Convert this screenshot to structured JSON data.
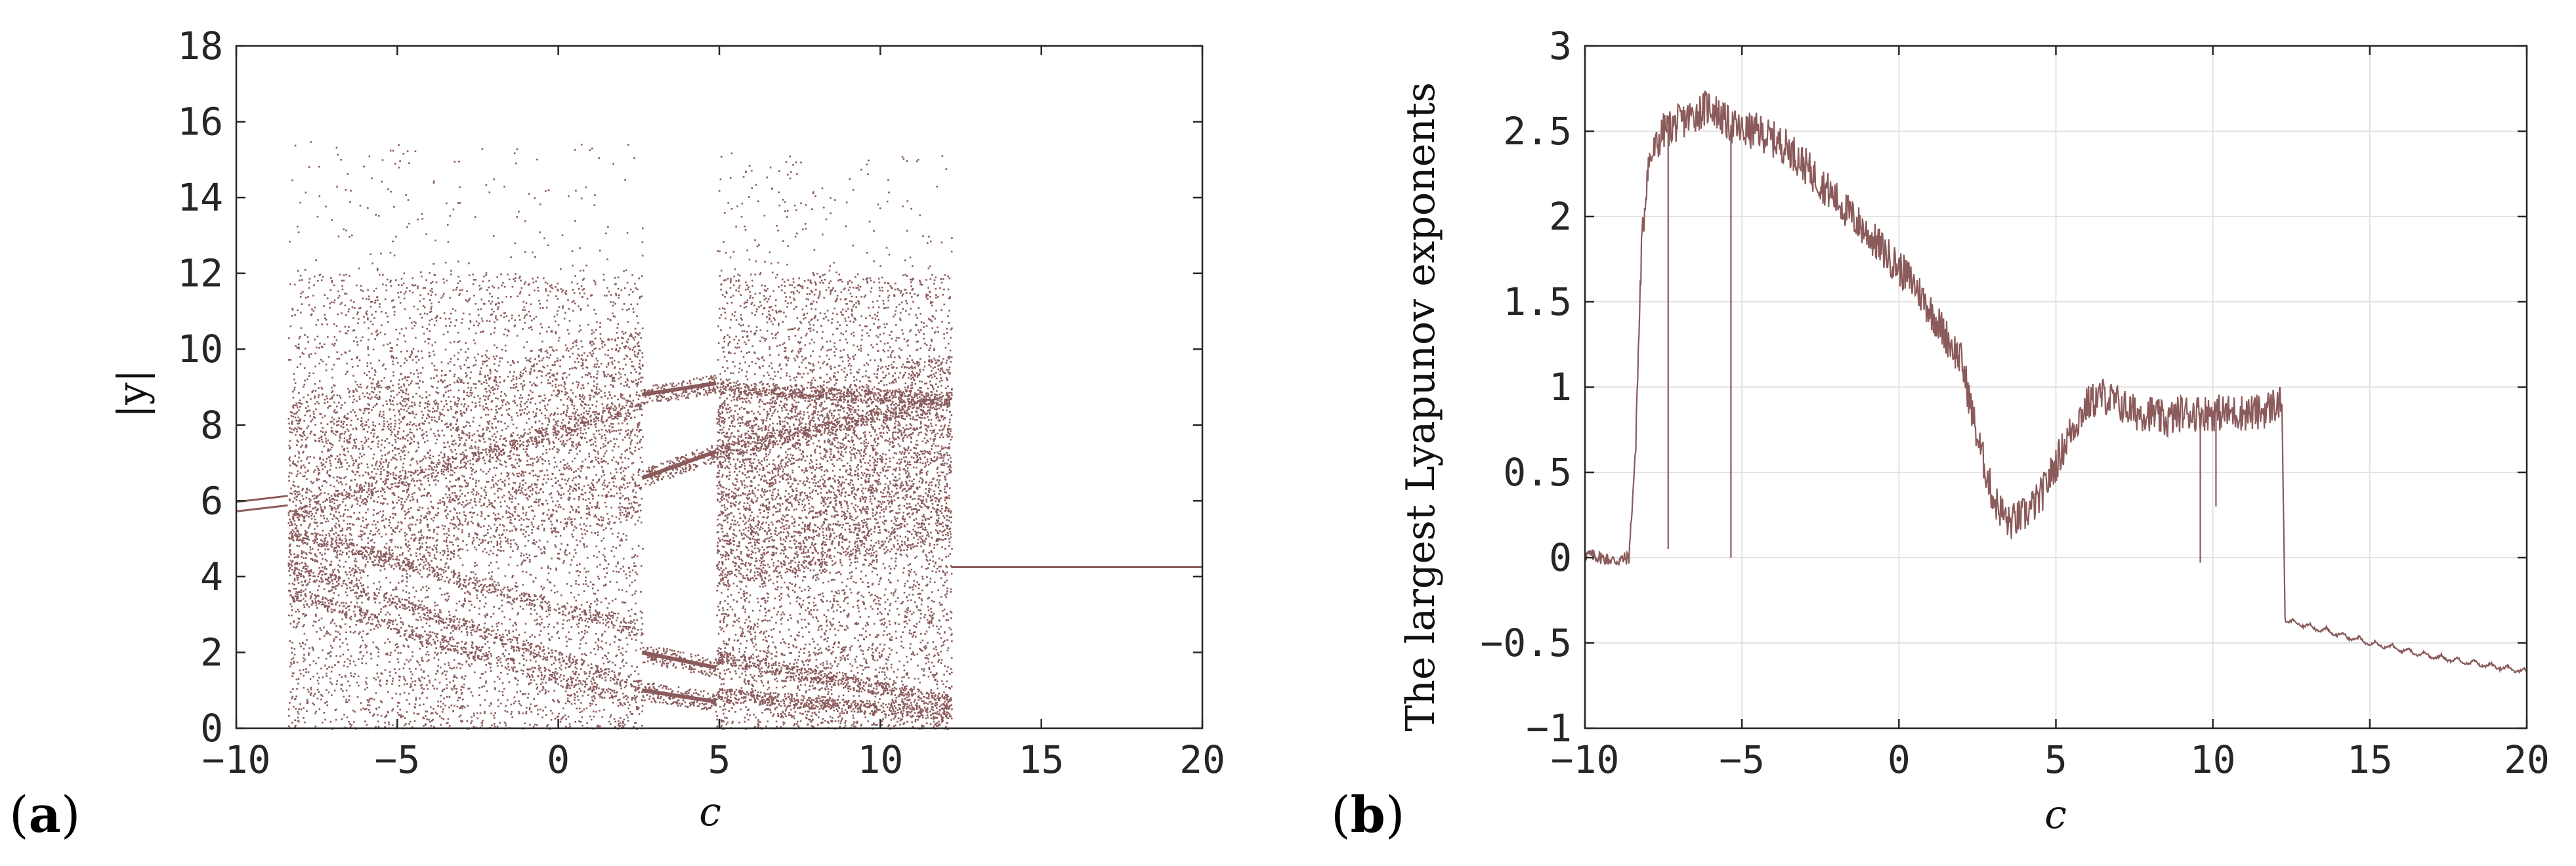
{
  "chart_data": [
    {
      "type": "scatter",
      "panel_label": {
        "open": "(",
        "letter": "a",
        "close": ")"
      },
      "title": "",
      "xlabel": "c",
      "ylabel": "|y|",
      "xlim": [
        -10,
        20
      ],
      "ylim": [
        0,
        18
      ],
      "xticks": [
        -10,
        -5,
        0,
        5,
        10,
        15,
        20
      ],
      "xtick_labels": [
        "−10",
        "−5",
        "0",
        "5",
        "10",
        "15",
        "20"
      ],
      "yticks": [
        0,
        2,
        4,
        6,
        8,
        10,
        12,
        14,
        16,
        18
      ],
      "ytick_labels": [
        "0",
        "2",
        "4",
        "6",
        "8",
        "10",
        "12",
        "14",
        "16",
        "18"
      ],
      "grid": false,
      "color": "#8b5a5a",
      "regions": [
        {
          "c_range": [
            -10,
            -8.4
          ],
          "behavior": "period-2 branch",
          "y_values": [
            5.8,
            6.05
          ]
        },
        {
          "c_range": [
            -8.4,
            2.6
          ],
          "behavior": "chaotic band",
          "y_range": [
            0,
            15.5
          ]
        },
        {
          "c_range": [
            2.6,
            4.9
          ],
          "behavior": "periodic window",
          "branches": [
            [
              8.8,
              9.1
            ],
            [
              6.6,
              7.3
            ],
            [
              2.0,
              1.6
            ],
            [
              1.0,
              0.7
            ]
          ]
        },
        {
          "c_range": [
            4.9,
            12.2
          ],
          "behavior": "chaotic band",
          "y_range": [
            0,
            15.2
          ]
        },
        {
          "c_range": [
            12.2,
            20
          ],
          "behavior": "fixed point",
          "y_values": [
            4.25
          ]
        }
      ]
    },
    {
      "type": "line",
      "panel_label": {
        "open": "(",
        "letter": "b",
        "close": ")"
      },
      "title": "",
      "xlabel": "c",
      "ylabel": "The largest Lyapunov exponents",
      "xlim": [
        -10,
        20
      ],
      "ylim": [
        -1,
        3
      ],
      "xticks": [
        -10,
        -5,
        0,
        5,
        10,
        15,
        20
      ],
      "xtick_labels": [
        "−10",
        "−5",
        "0",
        "5",
        "10",
        "15",
        "20"
      ],
      "yticks": [
        -1,
        -0.5,
        0,
        0.5,
        1,
        1.5,
        2,
        2.5,
        3
      ],
      "ytick_labels": [
        "−1",
        "−0.5",
        "0",
        "0.5",
        "1",
        "1.5",
        "2",
        "2.5",
        "3"
      ],
      "grid": true,
      "color": "#8b5a5a",
      "series": [
        {
          "x": [
            -10,
            -9.5,
            -9,
            -8.6,
            -8.4,
            -8.2,
            -8.0,
            -7.5,
            -7,
            -6.5,
            -6,
            -5.5,
            -5,
            -4.5,
            -4,
            -3.5,
            -3,
            -2.5,
            -2,
            -1.5,
            -1,
            -0.5,
            0,
            0.5,
            1,
            1.5,
            2,
            2.5,
            3,
            3.5,
            4,
            4.5,
            5,
            5.5,
            6,
            6.5,
            7,
            7.5,
            8,
            8.5,
            9,
            9.5,
            10,
            10.5,
            11,
            11.5,
            12,
            12.2,
            12.3,
            13,
            14,
            15,
            16,
            17,
            18,
            19,
            20
          ],
          "y": [
            0.02,
            0.0,
            -0.02,
            0.0,
            0.6,
            1.8,
            2.3,
            2.5,
            2.55,
            2.6,
            2.65,
            2.55,
            2.5,
            2.5,
            2.45,
            2.4,
            2.3,
            2.2,
            2.1,
            2.0,
            1.9,
            1.8,
            1.7,
            1.6,
            1.45,
            1.3,
            1.15,
            0.7,
            0.35,
            0.2,
            0.25,
            0.35,
            0.55,
            0.75,
            0.9,
            0.95,
            0.9,
            0.85,
            0.85,
            0.8,
            0.85,
            0.85,
            0.85,
            0.85,
            0.85,
            0.85,
            0.9,
            0.9,
            -0.35,
            -0.38,
            -0.43,
            -0.48,
            -0.52,
            -0.56,
            -0.59,
            -0.62,
            -0.65
          ]
        }
      ],
      "spikes": [
        {
          "x": -7.35,
          "y": 0.05
        },
        {
          "x": -5.35,
          "y": 0.0
        },
        {
          "x": 9.6,
          "y": -0.03
        },
        {
          "x": 10.1,
          "y": 0.3
        }
      ]
    }
  ]
}
